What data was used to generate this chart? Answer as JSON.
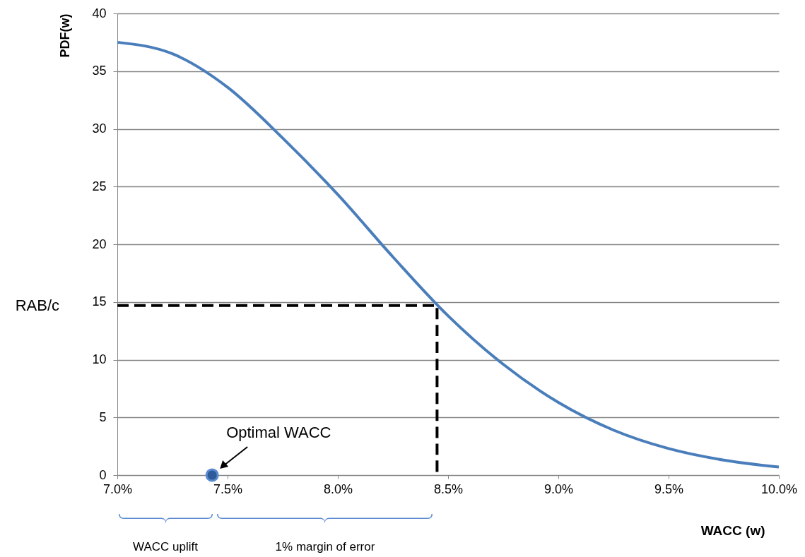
{
  "chart_data": {
    "type": "line",
    "xlabel": "WACC (w)",
    "ylabel": "PDF(w)",
    "xlim": [
      7.0,
      10.0
    ],
    "xticks": [
      {
        "value": 7.0,
        "label": "7.0%"
      },
      {
        "value": 7.5,
        "label": "7.5%"
      },
      {
        "value": 8.0,
        "label": "8.0%"
      },
      {
        "value": 8.5,
        "label": "8.5%"
      },
      {
        "value": 9.0,
        "label": "9.0%"
      },
      {
        "value": 9.5,
        "label": "9.5%"
      },
      {
        "value": 10.0,
        "label": "10.0%"
      }
    ],
    "ylim": [
      0,
      40
    ],
    "yticks": [
      0,
      5,
      10,
      15,
      20,
      25,
      30,
      35,
      40
    ],
    "grid": "y",
    "series": [
      {
        "color": "#4a7ebb",
        "x": [
          7.0,
          7.25,
          7.5,
          7.75,
          8.0,
          8.25,
          8.5,
          8.75,
          9.0,
          9.25,
          9.5,
          9.75,
          10.0
        ],
        "values": [
          37.5,
          36.5,
          33.6,
          29.2,
          24.3,
          18.9,
          13.8,
          9.6,
          6.3,
          3.9,
          2.3,
          1.3,
          0.7
        ]
      },
      {
        "type": "line",
        "color": "#000000",
        "line_style": "dashed",
        "x": [
          7.0,
          8.45,
          8.45
        ],
        "values": [
          14.7,
          14.7,
          0
        ]
      },
      {
        "type": "scatter",
        "color": "#2e5c9a",
        "marker": "circle",
        "x": [
          7.43
        ],
        "values": [
          0
        ]
      }
    ],
    "annotations": [
      {
        "text": "Optimal WACC",
        "x": 7.43,
        "y": 0
      },
      "RAB/c",
      "WACC uplift",
      "1% margin of error"
    ]
  }
}
